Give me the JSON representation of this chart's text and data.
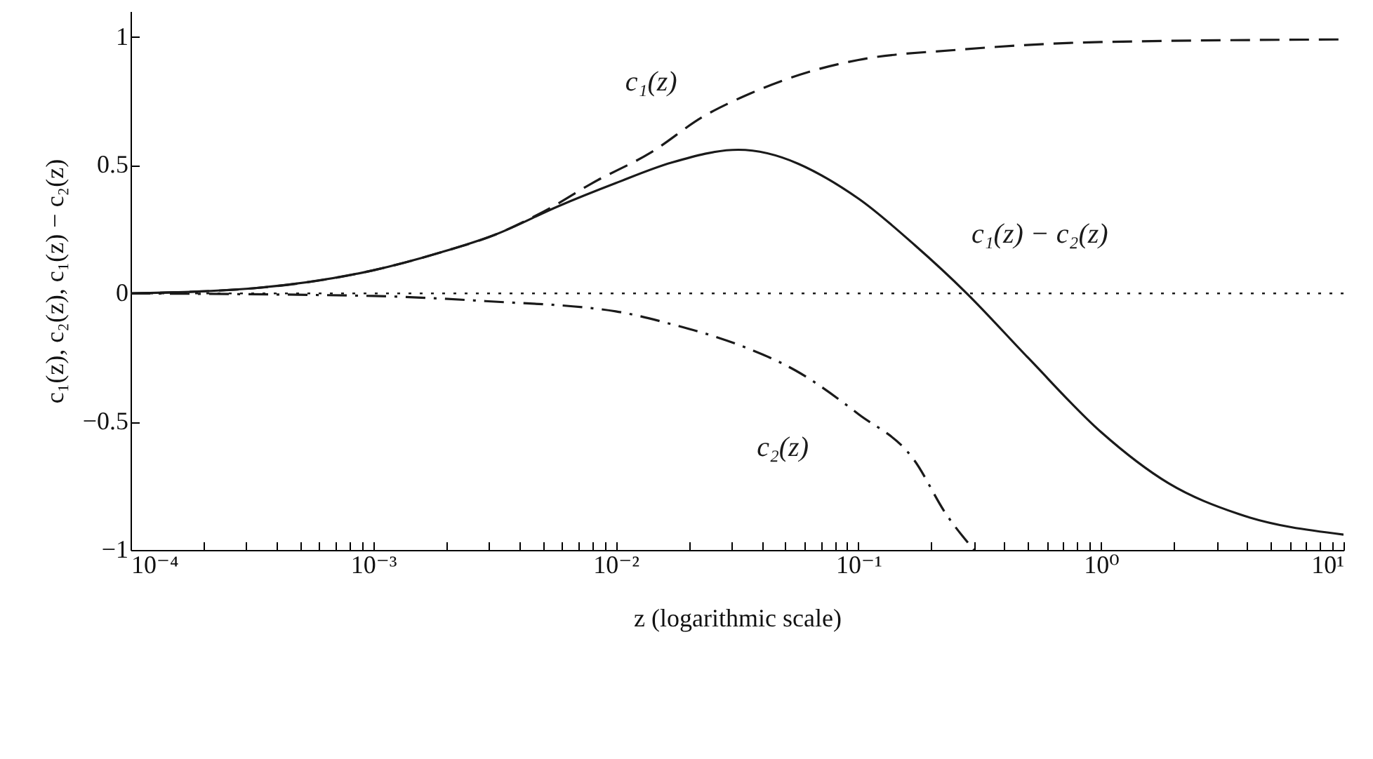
{
  "chart_data": {
    "type": "line",
    "xlabel": "z (logarithmic scale)",
    "ylabel": "c₁(z), c₂(z), c₁(z) − c₂(z)",
    "log": "x",
    "grid": false,
    "xlim": [
      0.0001,
      10
    ],
    "ylim": [
      -1,
      1.1
    ],
    "xticks": [
      {
        "value": 0.0001,
        "label": "10⁻⁴"
      },
      {
        "value": 0.0002,
        "label": null
      },
      {
        "value": 0.0003,
        "label": null
      },
      {
        "value": 0.0004,
        "label": null
      },
      {
        "value": 0.0005,
        "label": null
      },
      {
        "value": 0.0006,
        "label": null
      },
      {
        "value": 0.0007,
        "label": null
      },
      {
        "value": 0.0008,
        "label": null
      },
      {
        "value": 0.0009,
        "label": null
      },
      {
        "value": 0.001,
        "label": "10⁻³"
      },
      {
        "value": 0.002,
        "label": null
      },
      {
        "value": 0.003,
        "label": null
      },
      {
        "value": 0.004,
        "label": null
      },
      {
        "value": 0.005,
        "label": null
      },
      {
        "value": 0.006,
        "label": null
      },
      {
        "value": 0.007,
        "label": null
      },
      {
        "value": 0.008,
        "label": null
      },
      {
        "value": 0.009,
        "label": null
      },
      {
        "value": 0.01,
        "label": "10⁻²"
      },
      {
        "value": 0.02,
        "label": null
      },
      {
        "value": 0.03,
        "label": null
      },
      {
        "value": 0.04,
        "label": null
      },
      {
        "value": 0.05,
        "label": null
      },
      {
        "value": 0.06,
        "label": null
      },
      {
        "value": 0.07,
        "label": null
      },
      {
        "value": 0.08,
        "label": null
      },
      {
        "value": 0.09,
        "label": null
      },
      {
        "value": 0.1,
        "label": "10⁻¹"
      },
      {
        "value": 0.2,
        "label": null
      },
      {
        "value": 0.3,
        "label": null
      },
      {
        "value": 0.4,
        "label": null
      },
      {
        "value": 0.5,
        "label": null
      },
      {
        "value": 0.6,
        "label": null
      },
      {
        "value": 0.7,
        "label": null
      },
      {
        "value": 0.8,
        "label": null
      },
      {
        "value": 0.9,
        "label": null
      },
      {
        "value": 1,
        "label": "10⁰"
      },
      {
        "value": 2,
        "label": null
      },
      {
        "value": 3,
        "label": null
      },
      {
        "value": 4,
        "label": null
      },
      {
        "value": 5,
        "label": null
      },
      {
        "value": 6,
        "label": null
      },
      {
        "value": 7,
        "label": null
      },
      {
        "value": 8,
        "label": null
      },
      {
        "value": 9,
        "label": null
      },
      {
        "value": 10,
        "label": "10¹"
      }
    ],
    "yticks": [
      {
        "value": -1,
        "label": "−1"
      },
      {
        "value": -0.5,
        "label": "−0.5"
      },
      0,
      0.5,
      1
    ],
    "ref_lines": [
      {
        "axis": "y",
        "value": 0,
        "line_style": "dotted",
        "color": "#1a1a1a"
      }
    ],
    "series": [
      {
        "name": "c₁(z)",
        "color": "#1a1a1a",
        "line_style": "dashed",
        "x": [
          0.0001,
          0.00032,
          0.001,
          0.0019,
          0.0032,
          0.0053,
          0.008,
          0.014,
          0.023,
          0.036,
          0.066,
          0.1,
          0.26,
          1,
          10
        ],
        "values": [
          0,
          0.02,
          0.09,
          0.16,
          0.23,
          0.33,
          0.43,
          0.55,
          0.69,
          0.78,
          0.87,
          0.91,
          0.95,
          0.98,
          0.99
        ]
      },
      {
        "name": "c₂(z)",
        "color": "#1a1a1a",
        "line_style": "dashdot",
        "x": [
          0.0001,
          0.001,
          0.0029,
          0.01,
          0.017,
          0.032,
          0.055,
          0.1,
          0.17,
          0.23,
          0.3
        ],
        "values": [
          0,
          -0.01,
          -0.03,
          -0.07,
          -0.12,
          -0.2,
          -0.3,
          -0.47,
          -0.65,
          -0.86,
          -1
        ]
      },
      {
        "name": "c₁(z) − c₂(z)",
        "color": "#1a1a1a",
        "line_style": "solid",
        "x": [
          0.0001,
          0.00032,
          0.001,
          0.0019,
          0.0032,
          0.0058,
          0.01,
          0.017,
          0.032,
          0.1,
          0.17,
          0.28,
          0.5,
          1,
          1.9,
          3.7,
          10
        ],
        "values": [
          0,
          0.02,
          0.09,
          0.16,
          0.23,
          0.34,
          0.43,
          0.51,
          0.56,
          0.37,
          0.19,
          0,
          -0.25,
          -0.54,
          -0.74,
          -0.86,
          -0.94
        ]
      }
    ]
  }
}
